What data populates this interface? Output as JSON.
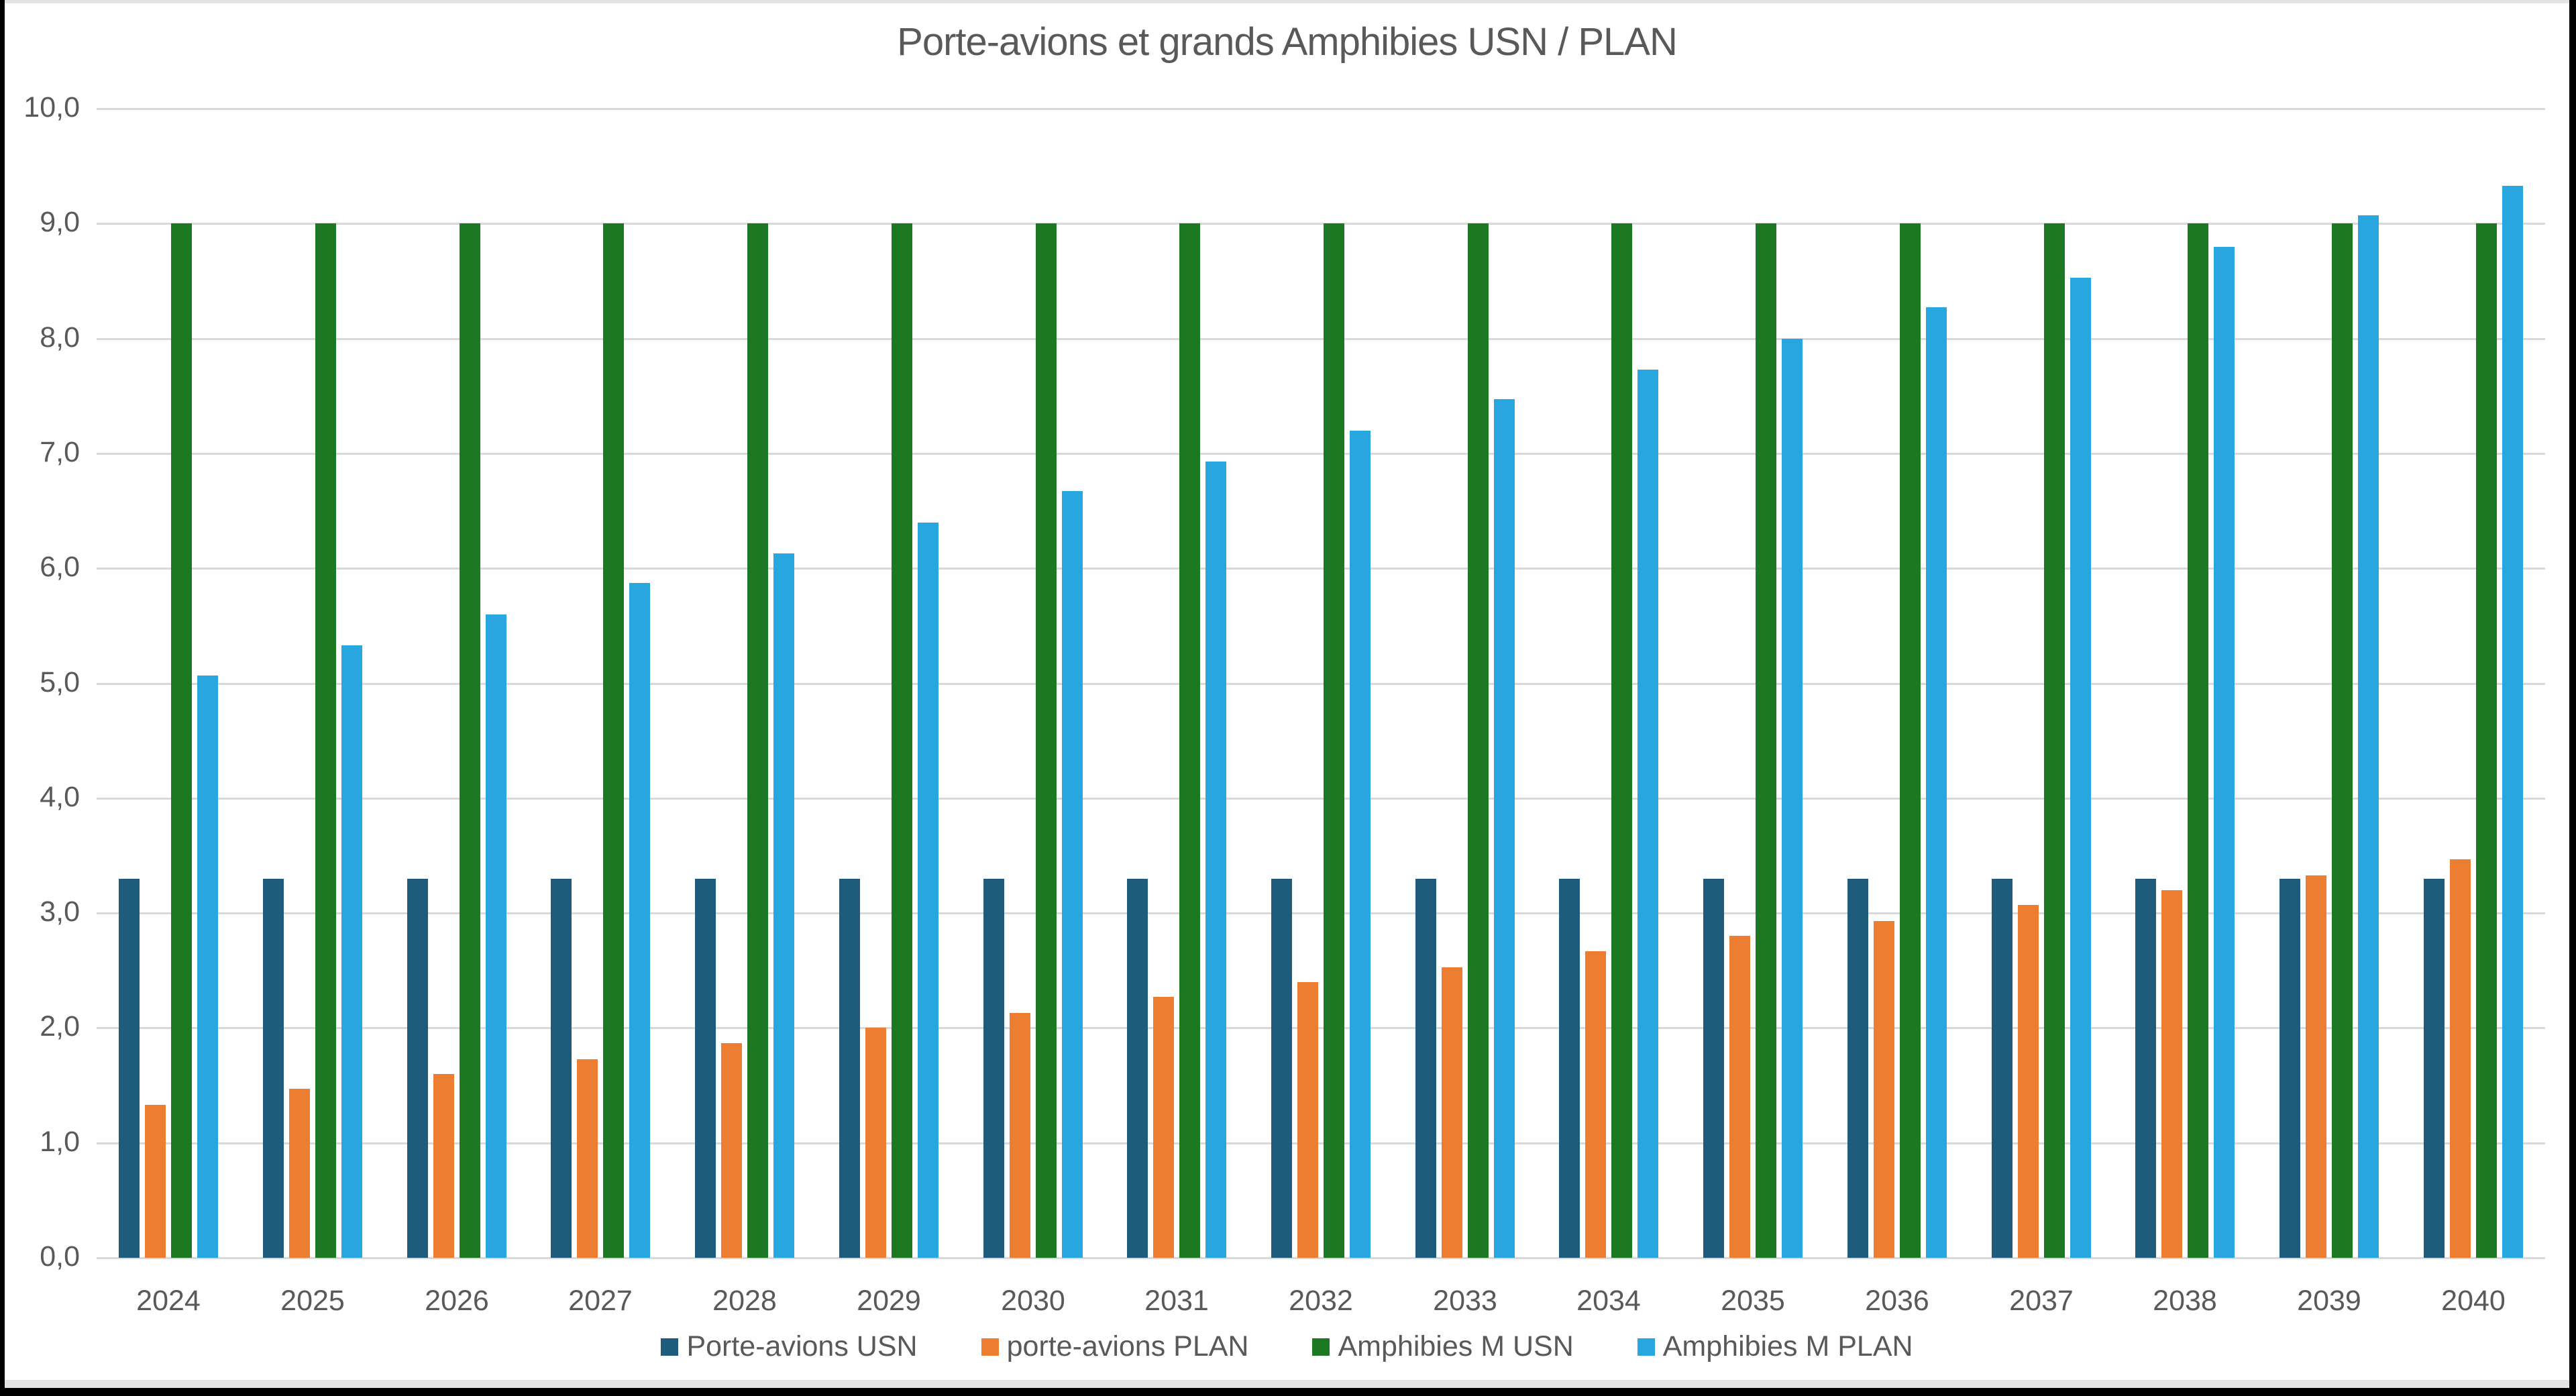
{
  "title": "Porte-avions et grands Amphibies USN / PLAN",
  "chart_data": {
    "type": "bar",
    "categories": [
      "2024",
      "2025",
      "2026",
      "2027",
      "2028",
      "2029",
      "2030",
      "2031",
      "2032",
      "2033",
      "2034",
      "2035",
      "2036",
      "2037",
      "2038",
      "2039",
      "2040"
    ],
    "series": [
      {
        "name": "Porte-avions USN",
        "color": "#1E5C7B",
        "values": [
          3.3,
          3.3,
          3.3,
          3.3,
          3.3,
          3.3,
          3.3,
          3.3,
          3.3,
          3.3,
          3.3,
          3.3,
          3.3,
          3.3,
          3.3,
          3.3,
          3.3
        ]
      },
      {
        "name": "porte-avions PLAN",
        "color": "#ED7D31",
        "values": [
          1.33,
          1.47,
          1.6,
          1.73,
          1.87,
          2.0,
          2.13,
          2.27,
          2.4,
          2.53,
          2.67,
          2.8,
          2.93,
          3.07,
          3.2,
          3.33,
          3.47
        ]
      },
      {
        "name": "Amphibies M USN",
        "color": "#1C7823",
        "values": [
          9.0,
          9.0,
          9.0,
          9.0,
          9.0,
          9.0,
          9.0,
          9.0,
          9.0,
          9.0,
          9.0,
          9.0,
          9.0,
          9.0,
          9.0,
          9.0,
          9.0
        ]
      },
      {
        "name": "Amphibies M PLAN",
        "color": "#27A6E0",
        "values": [
          5.07,
          5.33,
          5.6,
          5.87,
          6.13,
          6.4,
          6.67,
          6.93,
          7.2,
          7.47,
          7.73,
          8.0,
          8.27,
          8.53,
          8.8,
          9.07,
          9.33
        ]
      }
    ],
    "title": "Porte-avions et grands Amphibies USN / PLAN",
    "xlabel": "",
    "ylabel": "",
    "ylim": [
      0,
      10
    ],
    "ytick_step": 1,
    "ytick_labels": [
      "0,0",
      "1,0",
      "2,0",
      "3,0",
      "4,0",
      "5,0",
      "6,0",
      "7,0",
      "8,0",
      "9,0",
      "10,0"
    ],
    "grid": true,
    "legend_position": "bottom"
  },
  "colors": {
    "grid": "#D9D9D9",
    "axis_text": "#595959",
    "title_text": "#595959",
    "background": "#FFFFFF",
    "frame": "#000000",
    "edge_strip": "#E4E4E4"
  }
}
